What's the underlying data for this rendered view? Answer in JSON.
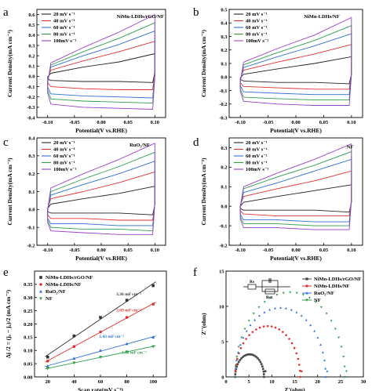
{
  "chart_data": [
    {
      "panel": "a",
      "type": "line",
      "xlabel": "Potential(V vs.RHE)",
      "ylabel": "Current Density(mA cm⁻²)",
      "xlim": [
        -0.12,
        0.12
      ],
      "ylim": [
        -0.4,
        0.65
      ],
      "xticks": [
        "-0.10",
        "-0.05",
        "0.00",
        "0.05",
        "0.10"
      ],
      "yticks": [
        "-0.4",
        "-0.3",
        "-0.2",
        "-0.1",
        "0.0",
        "0.1",
        "0.2",
        "0.3",
        "0.4",
        "0.5",
        "0.6"
      ],
      "annotation": "NiMn-LDHs/rGO/NF",
      "legend_position": "top-left",
      "series": [
        {
          "name": "20 mV s⁻¹",
          "color": "#222222",
          "x_range": [
            -0.1,
            0.1
          ],
          "top": [
            0.03,
            0.09,
            0.14,
            0.22
          ],
          "bottom": [
            -0.04,
            -0.05,
            -0.05,
            -0.06
          ]
        },
        {
          "name": "40 mV s⁻¹",
          "color": "#e03030",
          "x_range": [
            -0.1,
            0.1
          ],
          "top": [
            0.06,
            0.15,
            0.24,
            0.34
          ],
          "bottom": [
            -0.1,
            -0.12,
            -0.13,
            -0.13
          ]
        },
        {
          "name": "60 mV s⁻¹",
          "color": "#2f6fd6",
          "x_range": [
            -0.1,
            0.1
          ],
          "top": [
            0.09,
            0.2,
            0.31,
            0.44
          ],
          "bottom": [
            -0.17,
            -0.19,
            -0.2,
            -0.21
          ]
        },
        {
          "name": "80 mV s⁻¹",
          "color": "#2e9e4a",
          "x_range": [
            -0.1,
            0.1
          ],
          "top": [
            0.11,
            0.24,
            0.37,
            0.52
          ],
          "bottom": [
            -0.22,
            -0.24,
            -0.25,
            -0.26
          ]
        },
        {
          "name": "100mV s⁻¹",
          "color": "#9a3fc9",
          "x_range": [
            -0.1,
            0.1
          ],
          "top": [
            0.13,
            0.28,
            0.43,
            0.6
          ],
          "bottom": [
            -0.27,
            -0.3,
            -0.31,
            -0.32
          ]
        }
      ]
    },
    {
      "panel": "b",
      "type": "line",
      "xlabel": "Potential(V vs.RHE)",
      "ylabel": "Current Density(mA cm⁻²)",
      "xlim": [
        -0.12,
        0.12
      ],
      "ylim": [
        -0.3,
        0.5
      ],
      "xticks": [
        "-0.10",
        "-0.05",
        "0.00",
        "0.05",
        "0.10"
      ],
      "yticks": [
        "-0.3",
        "-0.2",
        "-0.1",
        "0.0",
        "0.1",
        "0.2",
        "0.3",
        "0.4",
        "0.5"
      ],
      "annotation": "NiMn-LDHs/NF",
      "legend_position": "top-left",
      "series": [
        {
          "name": "20 mV s⁻¹",
          "color": "#222222",
          "x_range": [
            -0.1,
            0.1
          ],
          "top": [
            0.02,
            0.06,
            0.1,
            0.15
          ],
          "bottom": [
            -0.03,
            -0.04,
            -0.04,
            -0.05
          ]
        },
        {
          "name": "40 mV s⁻¹",
          "color": "#e03030",
          "x_range": [
            -0.1,
            0.1
          ],
          "top": [
            0.05,
            0.11,
            0.17,
            0.24
          ],
          "bottom": [
            -0.07,
            -0.08,
            -0.09,
            -0.09
          ]
        },
        {
          "name": "60 mV s⁻¹",
          "color": "#2f6fd6",
          "x_range": [
            -0.1,
            0.1
          ],
          "top": [
            0.07,
            0.15,
            0.23,
            0.32
          ],
          "bottom": [
            -0.11,
            -0.12,
            -0.13,
            -0.13
          ]
        },
        {
          "name": "80 mV s⁻¹",
          "color": "#2e9e4a",
          "x_range": [
            -0.1,
            0.1
          ],
          "top": [
            0.09,
            0.18,
            0.27,
            0.38
          ],
          "bottom": [
            -0.15,
            -0.16,
            -0.17,
            -0.17
          ]
        },
        {
          "name": "100mV s⁻¹",
          "color": "#9a3fc9",
          "x_range": [
            -0.1,
            0.1
          ],
          "top": [
            0.11,
            0.21,
            0.31,
            0.44
          ],
          "bottom": [
            -0.18,
            -0.2,
            -0.21,
            -0.21
          ]
        }
      ]
    },
    {
      "panel": "c",
      "type": "line",
      "xlabel": "Potential(V vs.RHE)",
      "ylabel": "Current Density(mA cm⁻²)",
      "xlim": [
        -0.12,
        0.12
      ],
      "ylim": [
        -0.2,
        0.4
      ],
      "xticks": [
        "-0.10",
        "-0.05",
        "0.00",
        "0.05",
        "0.10"
      ],
      "yticks": [
        "-0.2",
        "-0.1",
        "0.0",
        "0.1",
        "0.2",
        "0.3",
        "0.4"
      ],
      "annotation": "RuO₂/NF",
      "legend_position": "top-left",
      "series": [
        {
          "name": "20 mV s⁻¹",
          "color": "#222222",
          "x_range": [
            -0.1,
            0.1
          ],
          "top": [
            0.03,
            0.06,
            0.09,
            0.13
          ],
          "bottom": [
            -0.02,
            -0.02,
            -0.02,
            -0.03
          ]
        },
        {
          "name": "40 mV s⁻¹",
          "color": "#e03030",
          "x_range": [
            -0.1,
            0.1
          ],
          "top": [
            0.06,
            0.1,
            0.15,
            0.21
          ],
          "bottom": [
            -0.05,
            -0.05,
            -0.06,
            -0.06
          ]
        },
        {
          "name": "60 mV s⁻¹",
          "color": "#2f6fd6",
          "x_range": [
            -0.1,
            0.1
          ],
          "top": [
            0.08,
            0.14,
            0.2,
            0.27
          ],
          "bottom": [
            -0.08,
            -0.08,
            -0.09,
            -0.09
          ]
        },
        {
          "name": "80 mV s⁻¹",
          "color": "#2e9e4a",
          "x_range": [
            -0.1,
            0.1
          ],
          "top": [
            0.1,
            0.17,
            0.24,
            0.32
          ],
          "bottom": [
            -0.1,
            -0.11,
            -0.11,
            -0.12
          ]
        },
        {
          "name": "100mV s⁻¹",
          "color": "#9a3fc9",
          "x_range": [
            -0.1,
            0.1
          ],
          "top": [
            0.12,
            0.2,
            0.28,
            0.37
          ],
          "bottom": [
            -0.12,
            -0.13,
            -0.14,
            -0.14
          ]
        }
      ]
    },
    {
      "panel": "d",
      "type": "line",
      "xlabel": "Potential(V vs.RHE)",
      "ylabel": "Current Density(mA cm⁻²)",
      "xlim": [
        -0.12,
        0.12
      ],
      "ylim": [
        -0.2,
        0.35
      ],
      "xticks": [
        "-0.10",
        "-0.05",
        "0.00",
        "0.05",
        "0.10"
      ],
      "yticks": [
        "-0.2",
        "-0.1",
        "0.0",
        "0.1",
        "0.2",
        "0.3"
      ],
      "annotation": "NF",
      "legend_position": "top-left",
      "series": [
        {
          "name": "20 mV s⁻¹",
          "color": "#222222",
          "x_range": [
            -0.1,
            0.1
          ],
          "top": [
            0.02,
            0.05,
            0.08,
            0.11
          ],
          "bottom": [
            -0.02,
            -0.02,
            -0.02,
            -0.03
          ]
        },
        {
          "name": "40 mV s⁻¹",
          "color": "#e03030",
          "x_range": [
            -0.1,
            0.1
          ],
          "top": [
            0.05,
            0.09,
            0.13,
            0.18
          ],
          "bottom": [
            -0.04,
            -0.05,
            -0.05,
            -0.05
          ]
        },
        {
          "name": "60 mV s⁻¹",
          "color": "#2f6fd6",
          "x_range": [
            -0.1,
            0.1
          ],
          "top": [
            0.07,
            0.12,
            0.18,
            0.24
          ],
          "bottom": [
            -0.07,
            -0.07,
            -0.08,
            -0.08
          ]
        },
        {
          "name": "80 mV s⁻¹",
          "color": "#2e9e4a",
          "x_range": [
            -0.1,
            0.1
          ],
          "top": [
            0.09,
            0.15,
            0.21,
            0.28
          ],
          "bottom": [
            -0.09,
            -0.09,
            -0.1,
            -0.1
          ]
        },
        {
          "name": "100mV s⁻¹",
          "color": "#9a3fc9",
          "x_range": [
            -0.1,
            0.1
          ],
          "top": [
            0.1,
            0.17,
            0.24,
            0.32
          ],
          "bottom": [
            -0.11,
            -0.11,
            -0.12,
            -0.12
          ]
        }
      ]
    },
    {
      "panel": "e",
      "type": "scatter",
      "xlabel": "Scan rate(mV s⁻¹)",
      "ylabel": "Δj /2 = (jₐ − j꜀)/2 (mA cm⁻²)",
      "xlim": [
        10,
        110
      ],
      "ylim": [
        0.0,
        0.4
      ],
      "xticks": [
        "20",
        "40",
        "60",
        "80",
        "100"
      ],
      "yticks": [
        "0.00",
        "0.05",
        "0.10",
        "0.15",
        "0.20",
        "0.25",
        "0.30",
        "0.35"
      ],
      "legend_position": "top-left",
      "series": [
        {
          "name": "NiMn-LDHs/rGO/NF",
          "color": "#333333",
          "marker": "square",
          "x": [
            20,
            40,
            60,
            80,
            100
          ],
          "y": [
            0.075,
            0.155,
            0.225,
            0.29,
            0.345
          ],
          "slope_label": "3.36 mF cm⁻²"
        },
        {
          "name": "NiMn-LDHs/NF",
          "color": "#e03030",
          "marker": "circle",
          "x": [
            20,
            40,
            60,
            80,
            100
          ],
          "y": [
            0.06,
            0.115,
            0.17,
            0.225,
            0.275
          ],
          "slope_label": "2.69 mF cm⁻²"
        },
        {
          "name": "RuO₂/NF",
          "color": "#2f6fd6",
          "marker": "triangle",
          "x": [
            20,
            40,
            60,
            80,
            100
          ],
          "y": [
            0.04,
            0.07,
            0.1,
            0.125,
            0.15
          ],
          "slope_label": "1.43 mF cm⁻²"
        },
        {
          "name": "NF",
          "color": "#2e9e4a",
          "marker": "triangle-down",
          "x": [
            20,
            40,
            60,
            80,
            100
          ],
          "y": [
            0.032,
            0.053,
            0.075,
            0.095,
            0.115
          ],
          "slope_label": "1.08 mF cm⁻²"
        }
      ]
    },
    {
      "panel": "f",
      "type": "scatter",
      "xlabel": "Z'(ohm)",
      "ylabel": "Z''(ohm)",
      "xlim": [
        0,
        30
      ],
      "ylim": [
        0,
        15
      ],
      "xticks": [
        "0",
        "5",
        "10",
        "15",
        "20",
        "25",
        "30"
      ],
      "yticks": [
        "0",
        "5",
        "10",
        "15"
      ],
      "legend_position": "top-right",
      "inset": {
        "labels": [
          "Rs",
          "Rct"
        ]
      },
      "series": [
        {
          "name": "NiMn-LDHs/rGO/NF",
          "color": "#444444",
          "marker": "square",
          "arc_start": 2.0,
          "arc_end": 8.3,
          "arc_height": 3.2
        },
        {
          "name": "NiMn-LDHs/NF",
          "color": "#e03030",
          "marker": "circle",
          "arc_start": 2.0,
          "arc_end": 16.2,
          "arc_height": 7.2
        },
        {
          "name": "RuO₂/NF",
          "color": "#2f6fd6",
          "marker": "triangle",
          "arc_start": 2.0,
          "arc_end": 21.8,
          "arc_height": 9.8
        },
        {
          "name": "NF",
          "color": "#2e9e4a",
          "marker": "triangle-down",
          "arc_start": 2.0,
          "arc_end": 26.0,
          "arc_height": 12.0
        }
      ]
    }
  ]
}
